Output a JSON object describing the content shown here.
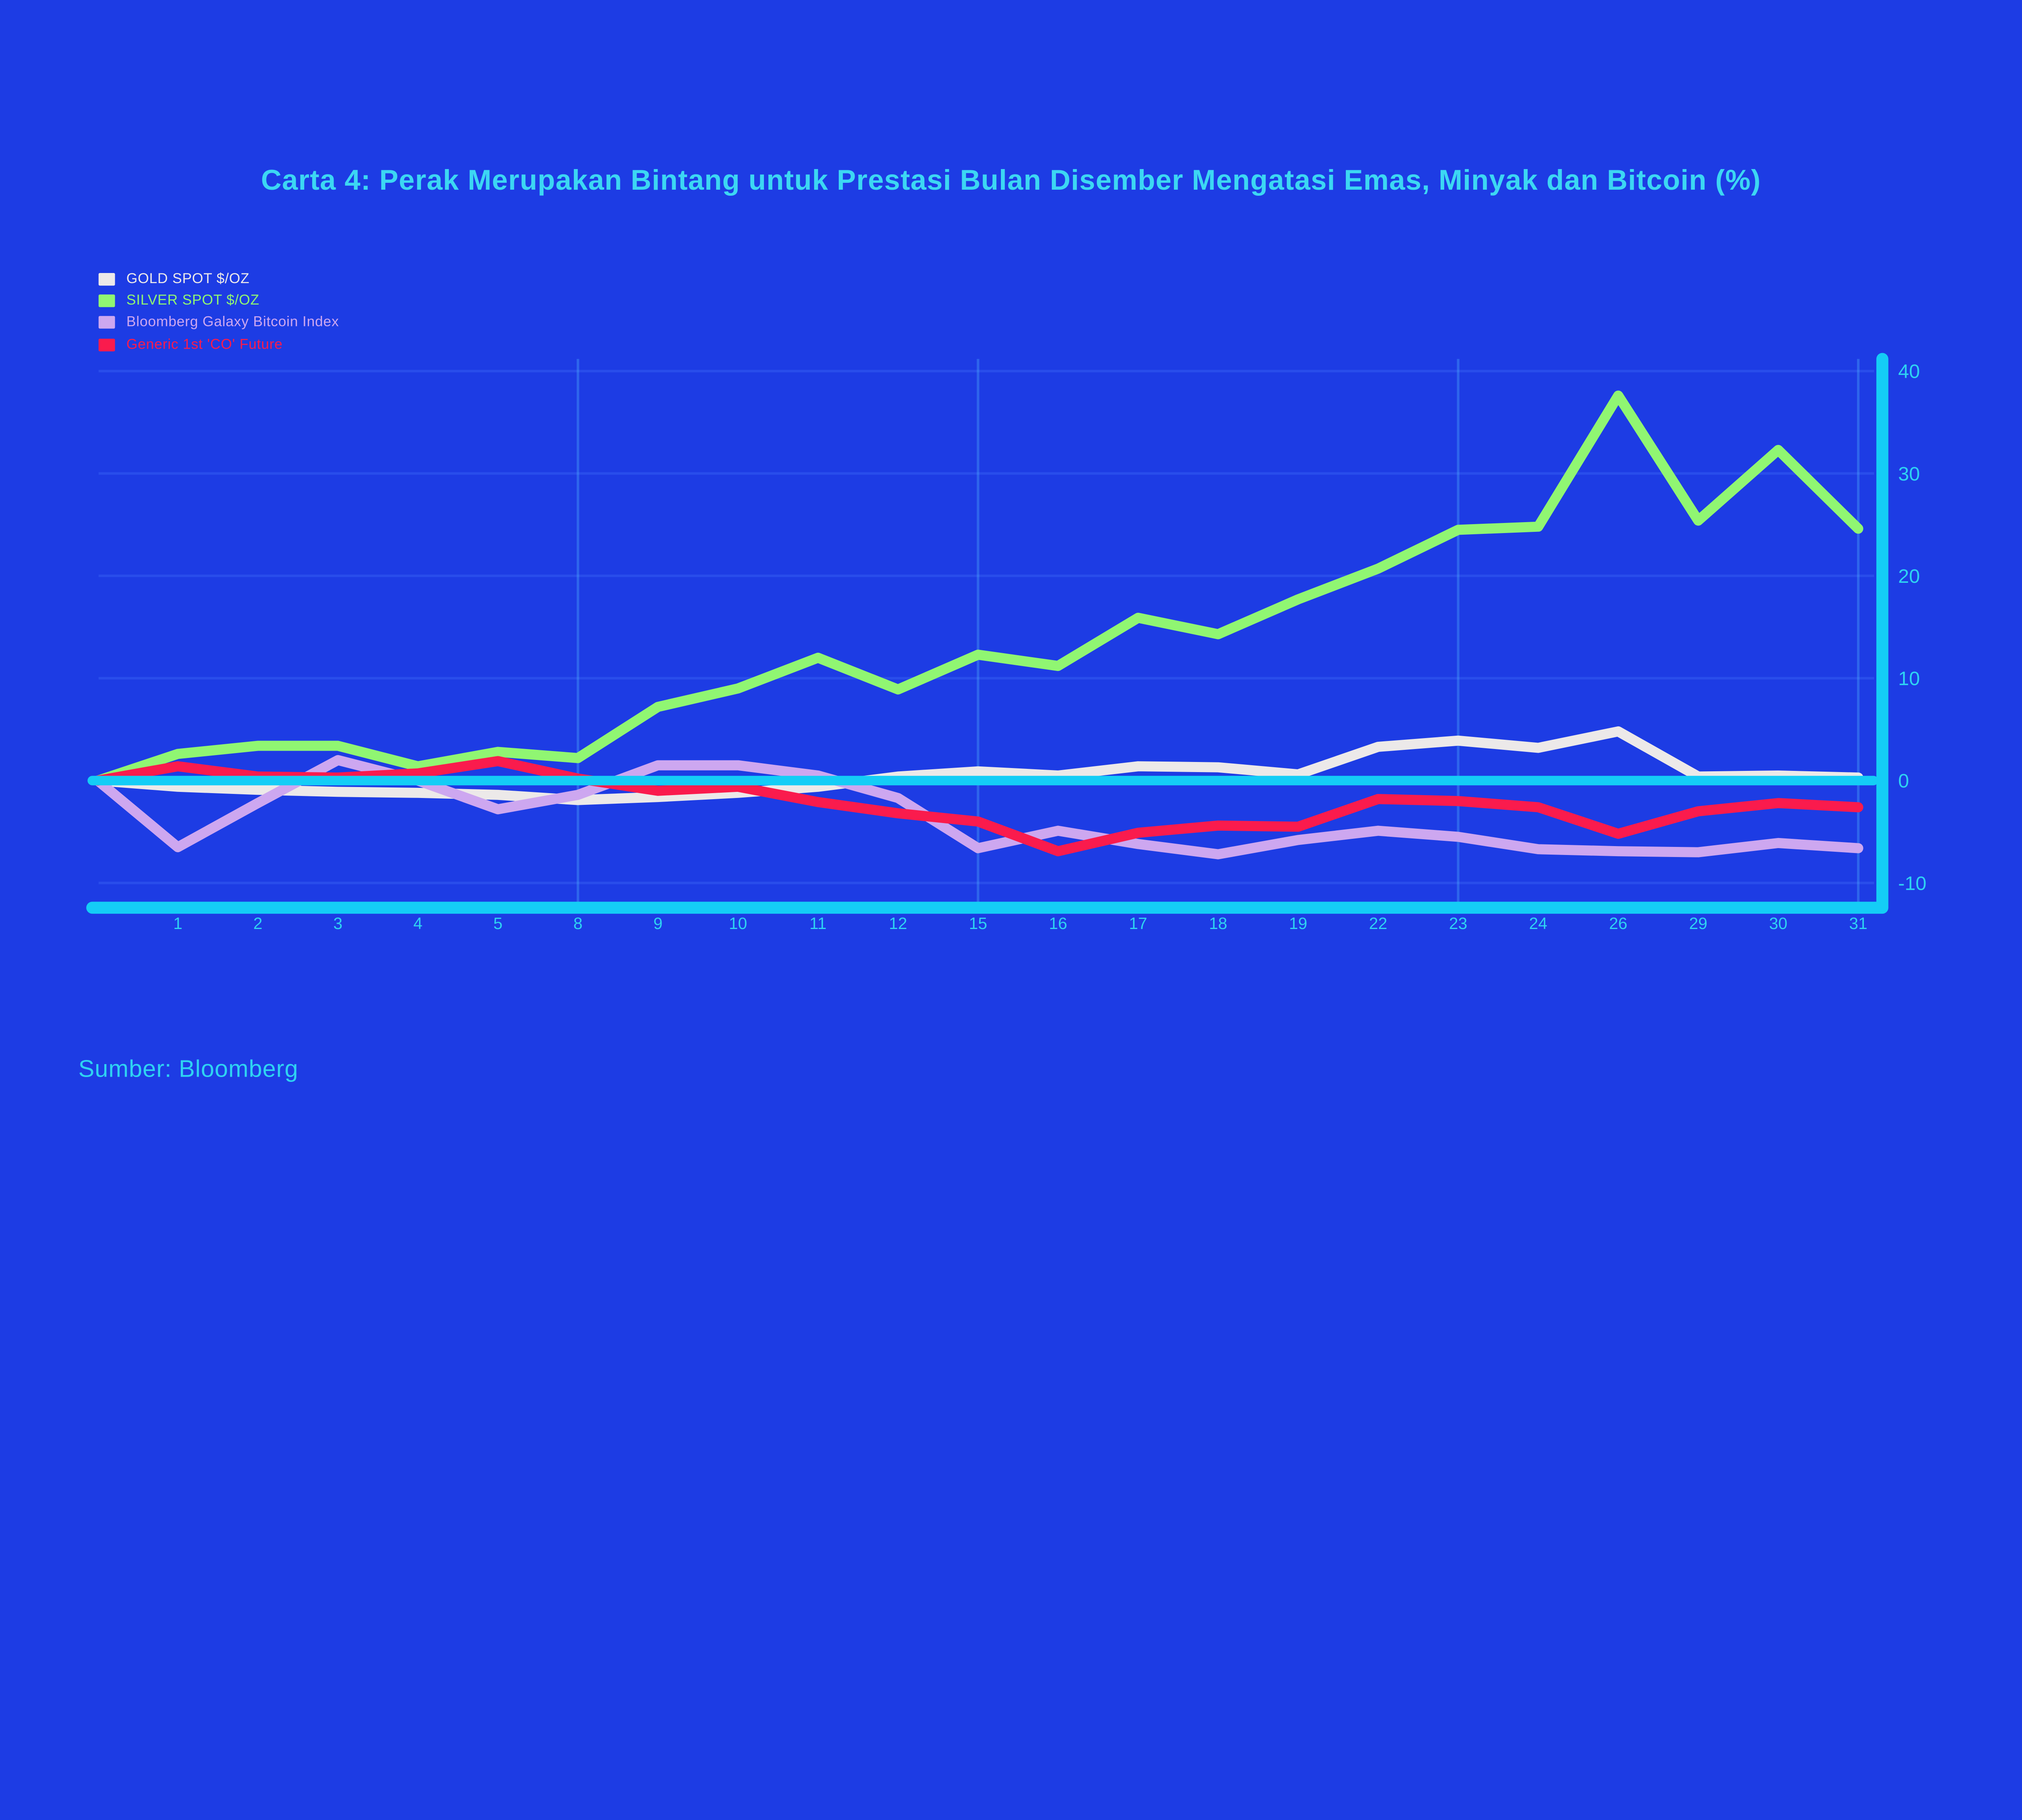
{
  "title": "Carta 4: Perak Merupakan Bintang untuk Prestasi Bulan Disember Mengatasi Emas, Minyak dan Bitcoin (%)",
  "source": "Sumber: Bloomberg",
  "colors": {
    "background": "#1d3ce4",
    "axis_cyan": "#14cdf6",
    "tick_label_cyan": "#2ed3f2",
    "title_cyan": "#3cd7f3",
    "source_cyan": "#2ed3f2",
    "gridline_horizontal": "#4d7bff",
    "gridline_vertical": "#56c8ff",
    "gold": "#ece9e9",
    "silver": "#90f672",
    "bitcoin": "#cda7f0",
    "oil": "#fa1b4d"
  },
  "chart_data": {
    "type": "line",
    "title": "Carta 4: Perak Merupakan Bintang untuk Prestasi Bulan Disember Mengatasi Emas, Minyak dan Bitcoin (%)",
    "xlabel": "",
    "ylabel": "%",
    "categories": [
      "",
      "1",
      "2",
      "3",
      "4",
      "5",
      "8",
      "9",
      "10",
      "11",
      "12",
      "15",
      "16",
      "17",
      "18",
      "19",
      "22",
      "23",
      "24",
      "26",
      "29",
      "30",
      "31"
    ],
    "y_ticks": [
      40,
      30,
      20,
      10,
      0,
      -10
    ],
    "ylim": [
      -12.5,
      41
    ],
    "grid_vertical_at": [
      "8",
      "15",
      "23",
      "31"
    ],
    "legend_position": "top-left",
    "series": [
      {
        "name": "GOLD SPOT $/OZ",
        "color": "#ece9e9",
        "values": [
          0,
          -0.6,
          -0.9,
          -1.1,
          -1.2,
          -1.4,
          -1.9,
          -1.6,
          -1.2,
          -0.6,
          0.4,
          0.9,
          0.5,
          1.4,
          1.3,
          0.6,
          3.3,
          3.9,
          3.2,
          4.8,
          0.4,
          0.5,
          0.3
        ]
      },
      {
        "name": "SILVER SPOT $/OZ",
        "color": "#90f672",
        "values": [
          0,
          2.6,
          3.4,
          3.4,
          1.4,
          2.8,
          2.2,
          7.2,
          9.0,
          12.0,
          8.9,
          12.3,
          11.2,
          15.9,
          14.3,
          17.7,
          20.7,
          24.5,
          24.8,
          37.6,
          25.4,
          32.3,
          24.6
        ]
      },
      {
        "name": "Bloomberg Galaxy Bitcoin Index",
        "color": "#cda7f0",
        "values": [
          0,
          -6.5,
          -2.2,
          2.0,
          0.0,
          -2.8,
          -1.4,
          1.5,
          1.5,
          0.5,
          -1.7,
          -6.6,
          -4.9,
          -6.2,
          -7.2,
          -5.8,
          -4.9,
          -5.5,
          -6.7,
          -6.9,
          -7.0,
          -6.1,
          -6.6
        ]
      },
      {
        "name": "Generic 1st 'CO' Future",
        "color": "#fa1b4d",
        "values": [
          0,
          1.4,
          0.4,
          0.3,
          0.7,
          1.9,
          0.2,
          -1.0,
          -0.6,
          -2.1,
          -3.2,
          -4.0,
          -6.9,
          -5.1,
          -4.4,
          -4.5,
          -1.8,
          -2.0,
          -2.6,
          -5.2,
          -3.0,
          -2.2,
          -2.6
        ]
      }
    ]
  }
}
